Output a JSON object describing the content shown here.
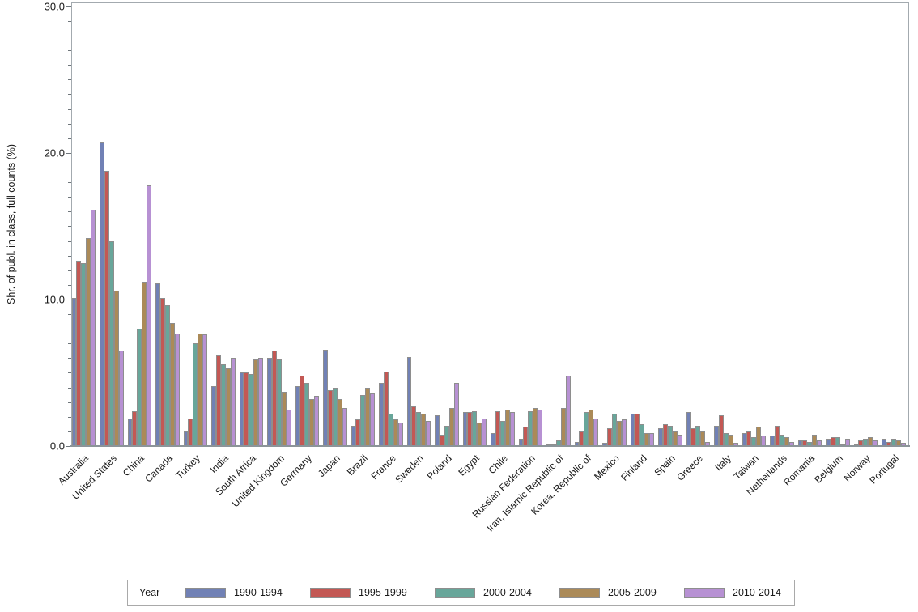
{
  "chart_data": {
    "type": "bar",
    "title": "",
    "xlabel": "",
    "ylabel": "Shr. of publ. in class, full counts (%)",
    "ylim": [
      0,
      30
    ],
    "yticks": [
      0,
      10,
      20,
      30
    ],
    "ytick_labels": [
      "0.0",
      "10.0",
      "20.0",
      "30.0"
    ],
    "minor_tick_step": 1,
    "grid": false,
    "legend_title": "Year",
    "legend_position": "bottom",
    "categories": [
      "Australia",
      "United States",
      "China",
      "Canada",
      "Turkey",
      "India",
      "South Africa",
      "United Kingdom",
      "Germany",
      "Japan",
      "Brazil",
      "France",
      "Sweden",
      "Poland",
      "Egypt",
      "Chile",
      "Russian Federation",
      "Iran, Islamic Republic of",
      "Korea, Republic of",
      "Mexico",
      "Finland",
      "Spain",
      "Greece",
      "Italy",
      "Taiwan",
      "Netherlands",
      "Romania",
      "Belgium",
      "Norway",
      "Portugal"
    ],
    "series": [
      {
        "name": "1990-1994",
        "color": "#7181b5",
        "values": [
          10.1,
          20.7,
          1.9,
          11.1,
          1.0,
          4.1,
          5.0,
          6.0,
          4.1,
          6.6,
          1.4,
          4.3,
          6.1,
          2.1,
          2.3,
          0.9,
          0.5,
          0.1,
          0.3,
          0.2,
          2.2,
          1.2,
          2.3,
          1.4,
          0.9,
          0.7,
          0.4,
          0.5,
          0.1,
          0.5
        ]
      },
      {
        "name": "1995-1999",
        "color": "#c35854",
        "values": [
          12.6,
          18.8,
          2.4,
          10.1,
          1.9,
          6.2,
          5.0,
          6.5,
          4.8,
          3.8,
          1.8,
          5.1,
          2.7,
          0.8,
          2.3,
          2.4,
          1.3,
          0.1,
          1.0,
          1.2,
          2.2,
          1.5,
          1.2,
          2.1,
          1.0,
          1.4,
          0.4,
          0.6,
          0.4,
          0.3
        ]
      },
      {
        "name": "2000-2004",
        "color": "#68a69a",
        "values": [
          12.5,
          14.0,
          8.0,
          9.6,
          7.0,
          5.6,
          4.9,
          5.9,
          4.3,
          4.0,
          3.5,
          2.2,
          2.3,
          1.4,
          2.4,
          1.7,
          2.4,
          0.4,
          2.3,
          2.2,
          1.5,
          1.4,
          1.4,
          0.9,
          0.6,
          0.8,
          0.3,
          0.6,
          0.5,
          0.5
        ]
      },
      {
        "name": "2005-2009",
        "color": "#ab8a58",
        "values": [
          14.2,
          10.6,
          11.2,
          8.4,
          7.7,
          5.3,
          5.9,
          3.7,
          3.2,
          3.2,
          4.0,
          1.8,
          2.2,
          2.6,
          1.6,
          2.5,
          2.6,
          2.6,
          2.5,
          1.7,
          0.9,
          1.0,
          1.0,
          0.8,
          1.3,
          0.6,
          0.8,
          0.1,
          0.6,
          0.4
        ]
      },
      {
        "name": "2010-2014",
        "color": "#b791d3",
        "values": [
          16.1,
          6.5,
          17.8,
          7.7,
          7.6,
          6.0,
          6.0,
          2.5,
          3.4,
          2.6,
          3.6,
          1.6,
          1.7,
          4.3,
          1.9,
          2.3,
          2.5,
          4.8,
          1.9,
          1.8,
          0.9,
          0.8,
          0.3,
          0.2,
          0.7,
          0.3,
          0.4,
          0.5,
          0.4,
          0.2
        ]
      }
    ]
  }
}
